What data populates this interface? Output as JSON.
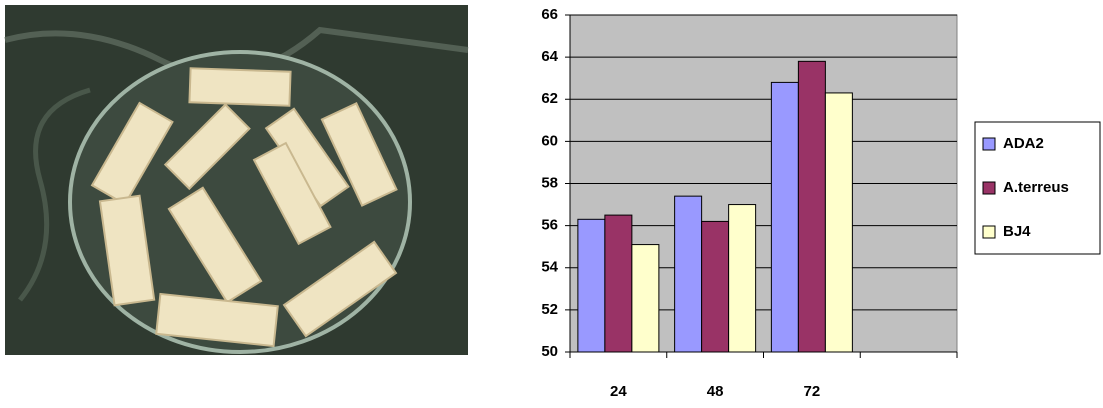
{
  "chart_data": {
    "type": "bar",
    "categories": [
      "24",
      "48",
      "72",
      null
    ],
    "series": [
      {
        "name": "ADA2",
        "color": "#9999ff",
        "values": [
          56.3,
          57.4,
          62.8,
          null
        ]
      },
      {
        "name": "A.terreus",
        "color": "#993366",
        "values": [
          56.5,
          56.2,
          63.8,
          null
        ]
      },
      {
        "name": "BJ4",
        "color": "#ffffcc",
        "values": [
          55.1,
          57.0,
          62.3,
          null
        ]
      }
    ],
    "ylim": [
      50,
      66
    ],
    "yticks": [
      50,
      52,
      54,
      56,
      58,
      60,
      62,
      64,
      66
    ],
    "grid": true,
    "plot_background": "#c0c0c0",
    "legend": "right"
  }
}
